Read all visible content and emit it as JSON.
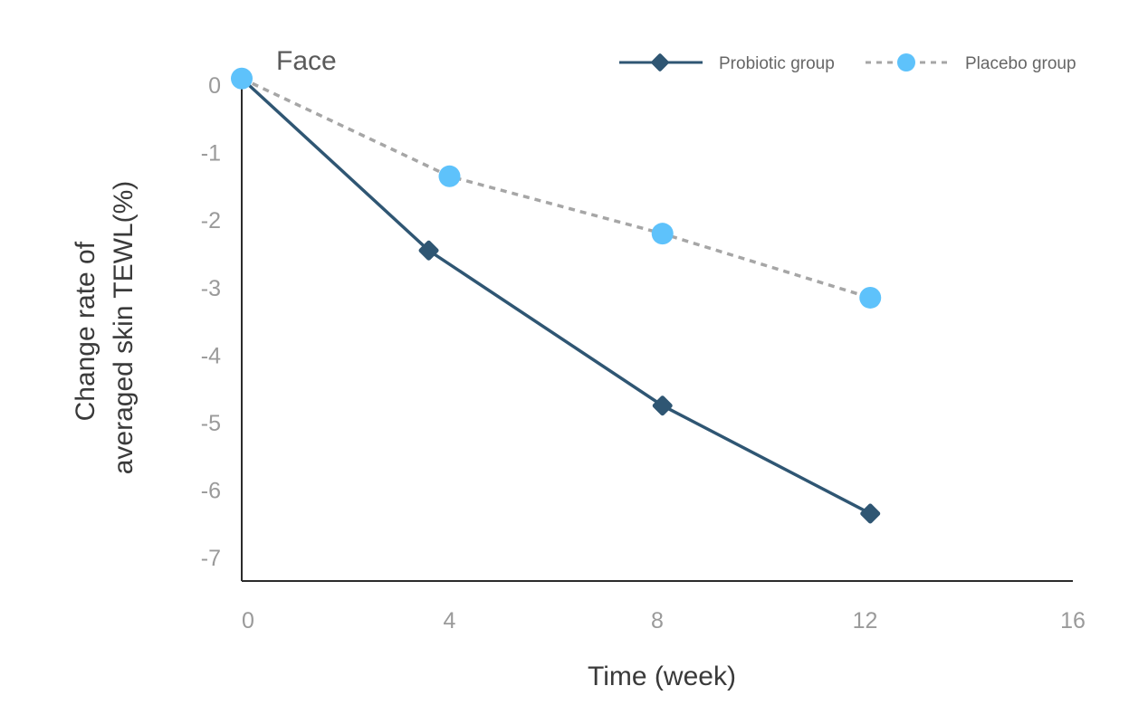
{
  "chart_data": {
    "type": "line",
    "title": "Face",
    "xlabel": "Time (week)",
    "ylabel_lines": [
      "Change rate of",
      "averaged skin TEWL(%)"
    ],
    "x_ticks": [
      "0",
      "4",
      "8",
      "12",
      "16"
    ],
    "y_ticks": [
      "0",
      "-1",
      "-2",
      "-3",
      "-4",
      "-5",
      "-6",
      "-7"
    ],
    "xlim": [
      0,
      16
    ],
    "ylim": [
      -7.35,
      0.15
    ],
    "grid": false,
    "legend_position": "top-right",
    "series": [
      {
        "name": "Probiotic group",
        "marker": "diamond",
        "line_style": "solid",
        "color": "#2f5673",
        "x": [
          0,
          3.6,
          8.1,
          12.1
        ],
        "y": [
          0.1,
          -2.45,
          -4.75,
          -6.35
        ]
      },
      {
        "name": "Placebo group",
        "marker": "circle",
        "line_style": "dashed",
        "color": "#5ec2fb",
        "line_color": "#a6a6a6",
        "x": [
          0,
          4.0,
          8.1,
          12.1
        ],
        "y": [
          0.1,
          -1.35,
          -2.2,
          -3.15
        ]
      }
    ]
  }
}
